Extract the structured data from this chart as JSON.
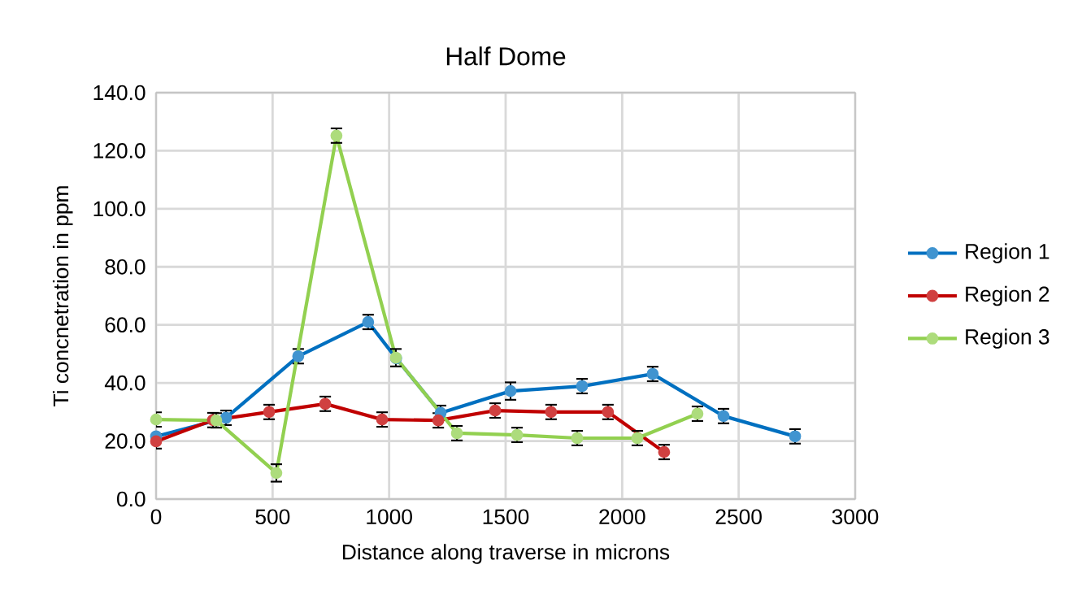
{
  "chart_data": {
    "type": "line",
    "title": "Half Dome",
    "xlabel": "Distance along traverse in microns",
    "ylabel": "Ti concnetration in ppm",
    "xlim": [
      0,
      3000
    ],
    "xticks": [
      0,
      500,
      1000,
      1500,
      2000,
      2500,
      3000
    ],
    "ylim": [
      0,
      140
    ],
    "yticks": [
      {
        "value": 0,
        "label": "0.0"
      },
      {
        "value": 20,
        "label": "20.0"
      },
      {
        "value": 40,
        "label": "40.0"
      },
      {
        "value": 60,
        "label": "60.0"
      },
      {
        "value": 80,
        "label": "80.0"
      },
      {
        "value": 100,
        "label": "100.0"
      },
      {
        "value": 120,
        "label": "120.0"
      },
      {
        "value": 140,
        "label": "140.0"
      }
    ],
    "grid": true,
    "legend": "right",
    "marker": "circle",
    "line_style": "solid",
    "series": [
      {
        "name": "Region 1",
        "color": "#0070c0",
        "x": [
          0,
          300,
          610,
          910,
          1030,
          1221,
          1521,
          1828,
          2131,
          2435,
          2742
        ],
        "values": [
          21.6,
          28,
          49.2,
          61,
          48.5,
          29.7,
          37.2,
          38.9,
          43.1,
          28.6,
          21.6
        ],
        "errors": [
          null,
          2.5,
          2.5,
          2.5,
          null,
          2.5,
          3,
          2.5,
          2.5,
          2.5,
          2.5
        ]
      },
      {
        "name": "Region 2",
        "color": "#c00000",
        "x": [
          0,
          244,
          485,
          726,
          970,
          1211,
          1455,
          1695,
          1939,
          2180
        ],
        "values": [
          19.9,
          27.2,
          30,
          32.8,
          27.4,
          27.1,
          30.5,
          30,
          30,
          16.2
        ],
        "errors": [
          2.5,
          2.5,
          2.5,
          2.5,
          2.5,
          2.5,
          2.5,
          2.5,
          2.5,
          2.5
        ]
      },
      {
        "name": "Region 3",
        "color": "#92d050",
        "x": [
          0,
          258,
          516,
          774,
          1029,
          1291,
          1549,
          1807,
          2065,
          2323
        ],
        "values": [
          27.4,
          27.1,
          9,
          125.2,
          48.7,
          22.7,
          22.1,
          21,
          21,
          29.4
        ],
        "errors": [
          2.5,
          2.5,
          3,
          2.5,
          3,
          2.5,
          2.5,
          2.5,
          2.5,
          2.5
        ]
      }
    ]
  }
}
